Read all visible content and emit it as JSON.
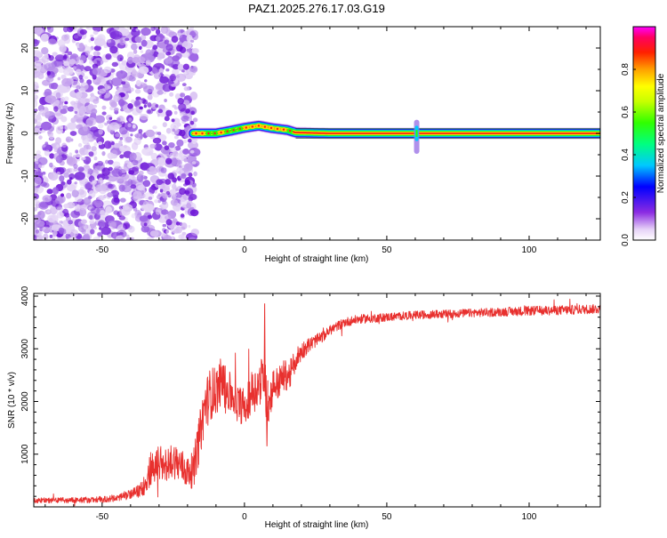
{
  "title": "PAZ1.2025.276.17.03.G19",
  "colorbar": {
    "label": "Normalized spectral amplitude",
    "ticks": [
      "0.0",
      "0.2",
      "0.4",
      "0.6",
      "0.8"
    ],
    "tick_values": [
      0.0,
      0.2,
      0.4,
      0.6,
      0.8
    ],
    "range": [
      0,
      1
    ],
    "colormap": "rainbow (white-violet-blue-cyan-green-yellow-red-magenta)"
  },
  "chart_data": [
    {
      "type": "heatmap",
      "title": "PAZ1.2025.276.17.03.G19",
      "xlabel": "Height of straight line (km)",
      "ylabel": "Frequency (Hz)",
      "xlim": [
        -74,
        125
      ],
      "ylim": [
        -25,
        25
      ],
      "xticks": [
        -50,
        0,
        50,
        100
      ],
      "yticks": [
        -20,
        -10,
        0,
        10,
        20
      ],
      "xtick_labels": [
        "-50",
        "0",
        "50",
        "100"
      ],
      "ytick_labels": [
        "-20",
        "-10",
        "0",
        "10",
        "20"
      ],
      "noise_region_x": [
        -74,
        -18
      ],
      "carrier_x": [
        -18,
        125
      ],
      "carrier_freq_profile": {
        "x": [
          -18,
          -10,
          -5,
          0,
          5,
          10,
          15,
          18,
          30,
          60,
          62,
          125
        ],
        "freq": [
          0,
          0,
          0.6,
          1.3,
          1.8,
          1.2,
          0.8,
          0.2,
          0,
          0,
          0,
          0
        ]
      },
      "spike_x": 60.5,
      "grid": false
    },
    {
      "type": "line",
      "xlabel": "Height of straight line (km)",
      "ylabel": "SNR (10 * v/v)",
      "xlim": [
        -74,
        125
      ],
      "ylim": [
        0,
        4050
      ],
      "xticks": [
        -50,
        0,
        50,
        100
      ],
      "yticks": [
        1000,
        2000,
        3000,
        4000
      ],
      "xtick_labels": [
        "-50",
        "0",
        "50",
        "100"
      ],
      "ytick_labels": [
        "1000",
        "2000",
        "3000",
        "4000"
      ],
      "line_color": "#e8302e",
      "series": [
        {
          "x": [
            -74,
            -60,
            -50,
            -45,
            -40,
            -37,
            -35,
            -33,
            -30,
            -27,
            -25,
            -22,
            -20,
            -18,
            -16,
            -14,
            -12,
            -10,
            -8,
            -6,
            -4,
            -2,
            0,
            2,
            4,
            6,
            7,
            8,
            10,
            12,
            14,
            16,
            18,
            20,
            22,
            25,
            28,
            30,
            35,
            40,
            45,
            50,
            60,
            70,
            80,
            90,
            100,
            110,
            120,
            125
          ],
          "values": [
            120,
            130,
            140,
            170,
            240,
            300,
            420,
            750,
            800,
            820,
            900,
            760,
            650,
            700,
            1250,
            1900,
            2150,
            2200,
            2400,
            2200,
            2100,
            1950,
            1900,
            2150,
            2250,
            2400,
            2550,
            1800,
            2300,
            2350,
            2500,
            2500,
            2800,
            2950,
            3050,
            3150,
            3250,
            3350,
            3500,
            3560,
            3580,
            3600,
            3640,
            3660,
            3680,
            3700,
            3720,
            3730,
            3750,
            3760
          ],
          "noise_amplitude": [
            50,
            55,
            60,
            70,
            90,
            120,
            200,
            350,
            350,
            320,
            350,
            350,
            300,
            350,
            450,
            500,
            500,
            480,
            450,
            420,
            380,
            360,
            350,
            420,
            420,
            450,
            500,
            380,
            350,
            320,
            300,
            280,
            230,
            180,
            150,
            120,
            100,
            95,
            90,
            85,
            85,
            80,
            80,
            80,
            80,
            85,
            90,
            90,
            90,
            90
          ]
        }
      ],
      "grid": false
    }
  ]
}
